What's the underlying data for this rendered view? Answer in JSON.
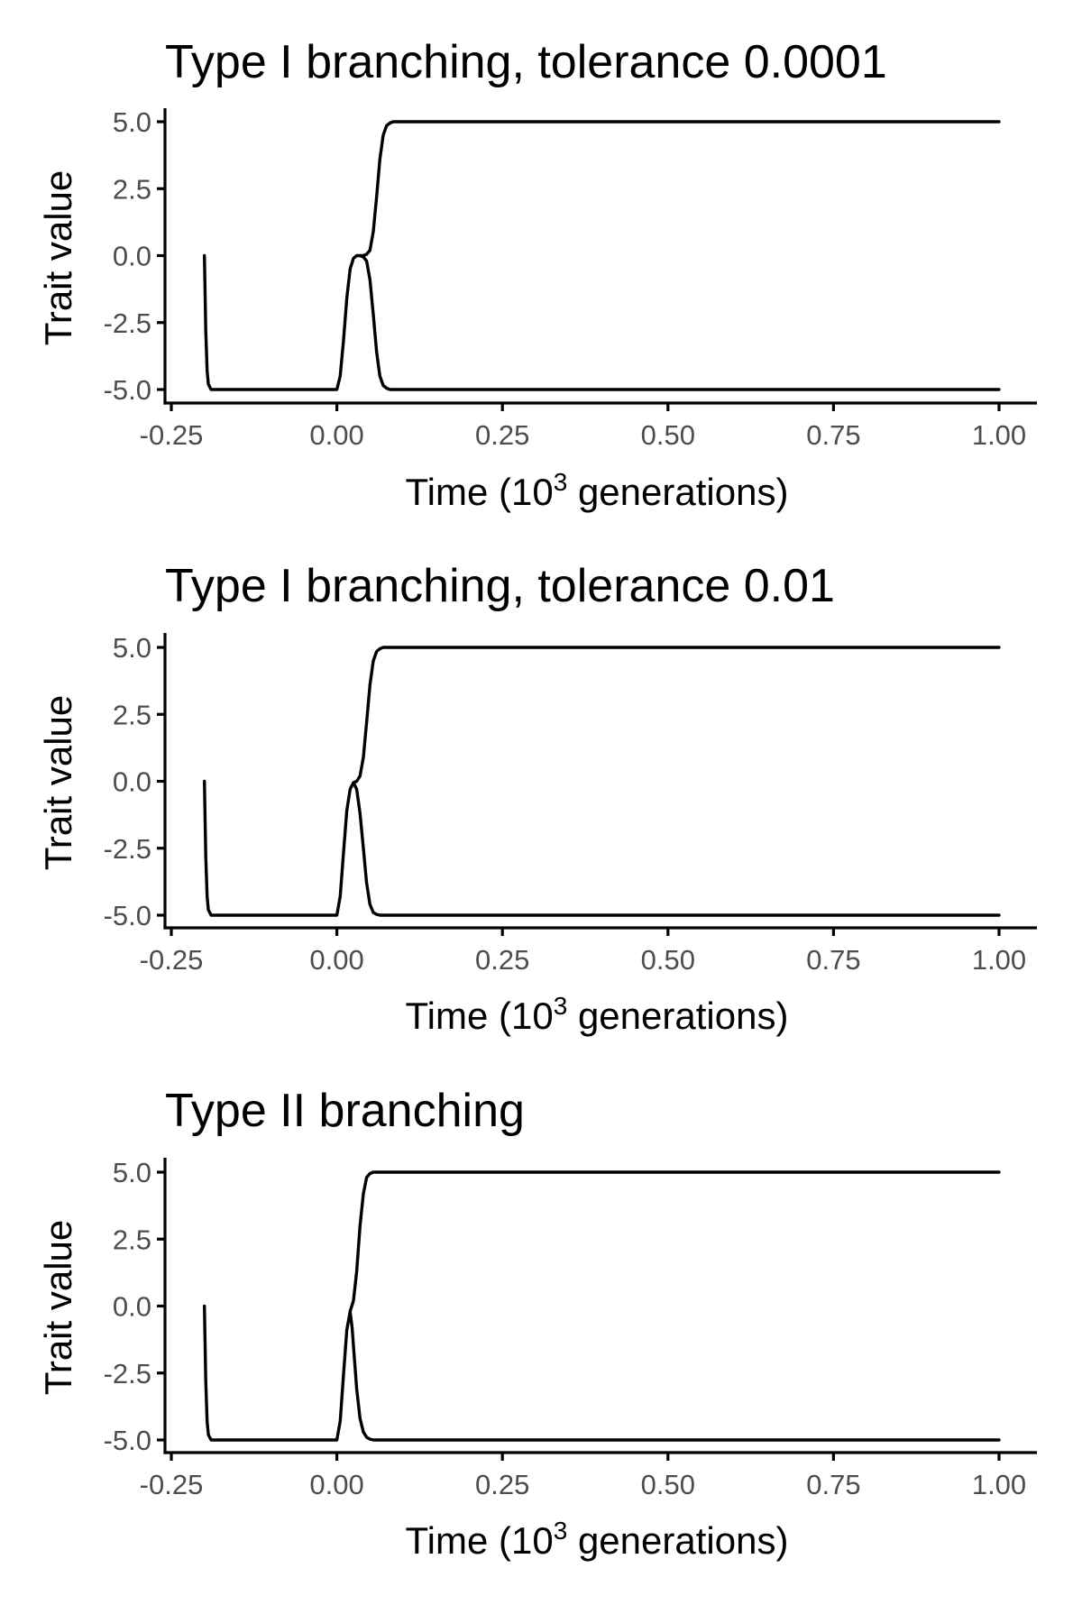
{
  "chart_data": [
    {
      "type": "line",
      "title": "Type I branching, tolerance 0.0001",
      "xlabel": {
        "prefix": "Time (10",
        "sup": "3",
        "suffix": " generations)"
      },
      "ylabel": "Trait value",
      "xlim": [
        -0.25,
        1.0
      ],
      "ylim": [
        -5.0,
        5.0
      ],
      "x_ticks": [
        -0.25,
        0.0,
        0.25,
        0.5,
        0.75,
        1.0
      ],
      "x_tick_labels": [
        "-0.25",
        "0.00",
        "0.25",
        "0.50",
        "0.75",
        "1.00"
      ],
      "y_ticks": [
        -5.0,
        -2.5,
        0.0,
        2.5,
        5.0
      ],
      "y_tick_labels": [
        "-5.0",
        "-2.5",
        "0.0",
        "2.5",
        "5.0"
      ],
      "grid": false,
      "legend": "none",
      "color": "#000000",
      "series": [
        {
          "x": [
            -0.2,
            -0.198,
            -0.196,
            -0.194,
            -0.19,
            -0.185,
            0.0,
            0.005,
            0.01,
            0.015,
            0.02,
            0.025,
            0.03,
            0.035,
            0.04,
            0.045,
            0.05,
            0.055,
            0.06,
            0.065,
            0.07,
            0.075,
            0.08,
            0.085,
            0.09,
            0.1,
            1.0
          ],
          "y": [
            0.0,
            -2.8,
            -4.3,
            -4.8,
            -5.0,
            -5.0,
            -5.0,
            -4.5,
            -3.2,
            -1.6,
            -0.5,
            -0.1,
            0.0,
            0.0,
            0.0,
            0.05,
            0.2,
            0.9,
            2.2,
            3.6,
            4.5,
            4.85,
            4.95,
            5.0,
            5.0,
            5.0,
            5.0
          ]
        },
        {
          "x": [
            0.035,
            0.04,
            0.045,
            0.05,
            0.055,
            0.06,
            0.065,
            0.07,
            0.075,
            0.08,
            0.085,
            0.09,
            0.1,
            1.0
          ],
          "y": [
            0.0,
            -0.05,
            -0.2,
            -0.9,
            -2.2,
            -3.6,
            -4.5,
            -4.85,
            -4.95,
            -5.0,
            -5.0,
            -5.0,
            -5.0,
            -5.0
          ]
        }
      ]
    },
    {
      "type": "line",
      "title": "Type I branching, tolerance 0.01",
      "xlabel": {
        "prefix": "Time (10",
        "sup": "3",
        "suffix": " generations)"
      },
      "ylabel": "Trait value",
      "xlim": [
        -0.25,
        1.0
      ],
      "ylim": [
        -5.0,
        5.0
      ],
      "x_ticks": [
        -0.25,
        0.0,
        0.25,
        0.5,
        0.75,
        1.0
      ],
      "x_tick_labels": [
        "-0.25",
        "0.00",
        "0.25",
        "0.50",
        "0.75",
        "1.00"
      ],
      "y_ticks": [
        -5.0,
        -2.5,
        0.0,
        2.5,
        5.0
      ],
      "y_tick_labels": [
        "-5.0",
        "-2.5",
        "0.0",
        "2.5",
        "5.0"
      ],
      "grid": false,
      "legend": "none",
      "color": "#000000",
      "series": [
        {
          "x": [
            -0.2,
            -0.198,
            -0.196,
            -0.194,
            -0.19,
            -0.185,
            0.0,
            0.005,
            0.01,
            0.015,
            0.02,
            0.025,
            0.03,
            0.035,
            0.04,
            0.045,
            0.05,
            0.055,
            0.06,
            0.065,
            0.07,
            0.08,
            1.0
          ],
          "y": [
            0.0,
            -2.8,
            -4.3,
            -4.8,
            -5.0,
            -5.0,
            -5.0,
            -4.3,
            -2.7,
            -1.1,
            -0.3,
            -0.05,
            0.0,
            0.2,
            0.9,
            2.2,
            3.6,
            4.5,
            4.85,
            4.95,
            5.0,
            5.0,
            5.0
          ]
        },
        {
          "x": [
            0.025,
            0.03,
            0.035,
            0.04,
            0.045,
            0.05,
            0.055,
            0.06,
            0.065,
            0.07,
            0.08,
            1.0
          ],
          "y": [
            -0.05,
            -0.3,
            -1.2,
            -2.5,
            -3.8,
            -4.6,
            -4.9,
            -4.97,
            -5.0,
            -5.0,
            -5.0,
            -5.0
          ]
        }
      ]
    },
    {
      "type": "line",
      "title": "Type II branching",
      "xlabel": {
        "prefix": "Time (10",
        "sup": "3",
        "suffix": " generations)"
      },
      "ylabel": "Trait value",
      "xlim": [
        -0.25,
        1.0
      ],
      "ylim": [
        -5.0,
        5.0
      ],
      "x_ticks": [
        -0.25,
        0.0,
        0.25,
        0.5,
        0.75,
        1.0
      ],
      "x_tick_labels": [
        "-0.25",
        "0.00",
        "0.25",
        "0.50",
        "0.75",
        "1.00"
      ],
      "y_ticks": [
        -5.0,
        -2.5,
        0.0,
        2.5,
        5.0
      ],
      "y_tick_labels": [
        "-5.0",
        "-2.5",
        "0.0",
        "2.5",
        "5.0"
      ],
      "grid": false,
      "legend": "none",
      "color": "#000000",
      "series": [
        {
          "x": [
            -0.2,
            -0.198,
            -0.196,
            -0.194,
            -0.19,
            -0.185,
            0.0,
            0.005,
            0.01,
            0.015,
            0.02,
            0.025,
            0.03,
            0.035,
            0.04,
            0.045,
            0.05,
            0.055,
            0.06,
            1.0
          ],
          "y": [
            0.0,
            -2.8,
            -4.3,
            -4.8,
            -5.0,
            -5.0,
            -5.0,
            -4.3,
            -2.6,
            -0.9,
            -0.2,
            0.2,
            1.3,
            3.0,
            4.2,
            4.8,
            4.95,
            5.0,
            5.0,
            5.0
          ]
        },
        {
          "x": [
            0.02,
            0.023,
            0.026,
            0.03,
            0.035,
            0.04,
            0.045,
            0.05,
            0.055,
            0.06,
            1.0
          ],
          "y": [
            -0.2,
            -0.8,
            -1.8,
            -3.1,
            -4.2,
            -4.7,
            -4.9,
            -4.97,
            -5.0,
            -5.0,
            -5.0
          ]
        }
      ]
    }
  ]
}
